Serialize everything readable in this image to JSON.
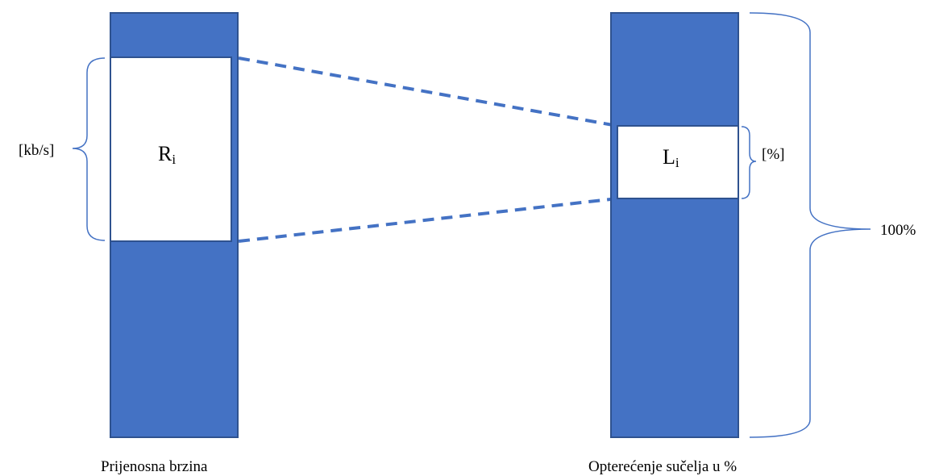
{
  "left_block": {
    "value_label": "R",
    "value_subscript": "i",
    "unit_label": "[kb/s]",
    "caption": "Prijenosna brzina"
  },
  "right_block": {
    "value_label": "L",
    "value_subscript": "i",
    "unit_label": "[%]",
    "total_label": "100%",
    "caption": "Opterećenje sučelja u %"
  },
  "colors": {
    "bar_fill": "#4472c4",
    "bar_stroke": "#2f528f",
    "connector": "#4472c4",
    "brace": "#4472c4"
  }
}
